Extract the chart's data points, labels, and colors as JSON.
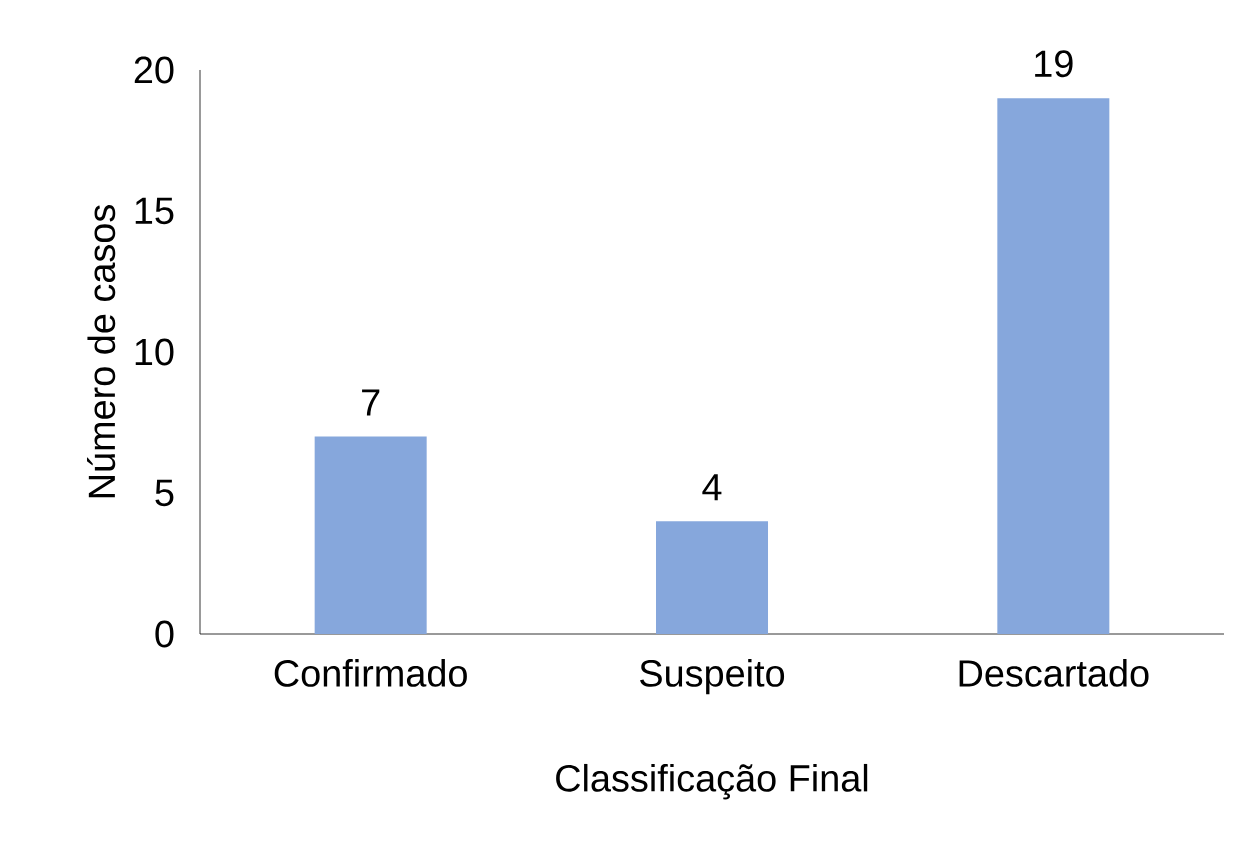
{
  "chart_data": {
    "type": "bar",
    "xlabel": "Classificação Final",
    "ylabel": "Número de casos",
    "categories": [
      "Confirmado",
      "Suspeito",
      "Descartado"
    ],
    "values": [
      7,
      4,
      19
    ],
    "color": "#86a7dc",
    "ylim": [
      0,
      20
    ],
    "yticks": [
      0,
      5,
      10,
      15,
      20
    ],
    "grid": false,
    "data_labels": true
  }
}
